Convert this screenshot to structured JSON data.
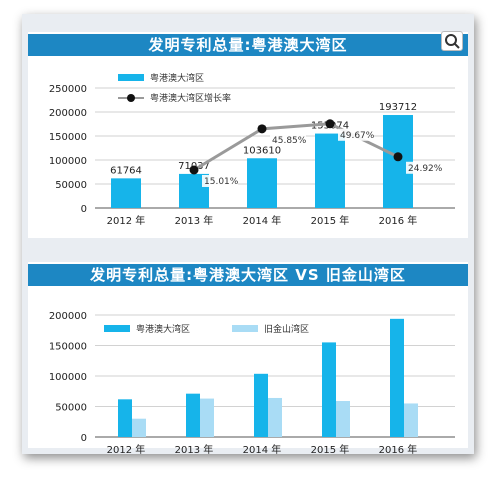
{
  "chart_data": [
    {
      "type": "bar",
      "title": "发明专利总量:粤港澳大湾区",
      "categories": [
        "2012 年",
        "2013 年",
        "2014 年",
        "2015 年",
        "2016 年"
      ],
      "series": [
        {
          "name": "粤港澳大湾区",
          "type": "bar",
          "values": [
            61764,
            71037,
            103610,
            155074,
            193712
          ],
          "color": "#16b4ea"
        },
        {
          "name": "粤港澳大湾区增长率",
          "type": "line",
          "axis": "secondary",
          "values": [
            null,
            15.01,
            45.85,
            49.67,
            24.92
          ],
          "color": "#111111"
        }
      ],
      "value_labels": [
        "61764",
        "71037",
        "103610",
        "155074",
        "193712"
      ],
      "rate_labels": [
        "",
        "15.01%",
        "45.85%",
        "49.67%",
        "24.92%"
      ],
      "y_ticks": [
        "0",
        "50000",
        "100000",
        "150000",
        "200000",
        "250000"
      ],
      "ylim": [
        0,
        250000
      ],
      "legend_position": "top-left",
      "grid": true
    },
    {
      "type": "bar",
      "title": "发明专利总量:粤港澳大湾区 VS 旧金山湾区",
      "categories": [
        "2012 年",
        "2013 年",
        "2014 年",
        "2015 年",
        "2016 年"
      ],
      "series": [
        {
          "name": "粤港澳大湾区",
          "values": [
            61764,
            71037,
            103610,
            155074,
            193712
          ],
          "color": "#16b4ea"
        },
        {
          "name": "旧金山湾区",
          "values": [
            30000,
            63000,
            64000,
            59000,
            55000
          ],
          "color": "#a9dcf5"
        }
      ],
      "y_ticks": [
        "0",
        "50000",
        "100000",
        "150000",
        "200000"
      ],
      "ylim": [
        0,
        200000
      ],
      "legend_position": "top",
      "grid": true
    }
  ],
  "ui": {
    "zoom_icon": "zoom-icon"
  }
}
